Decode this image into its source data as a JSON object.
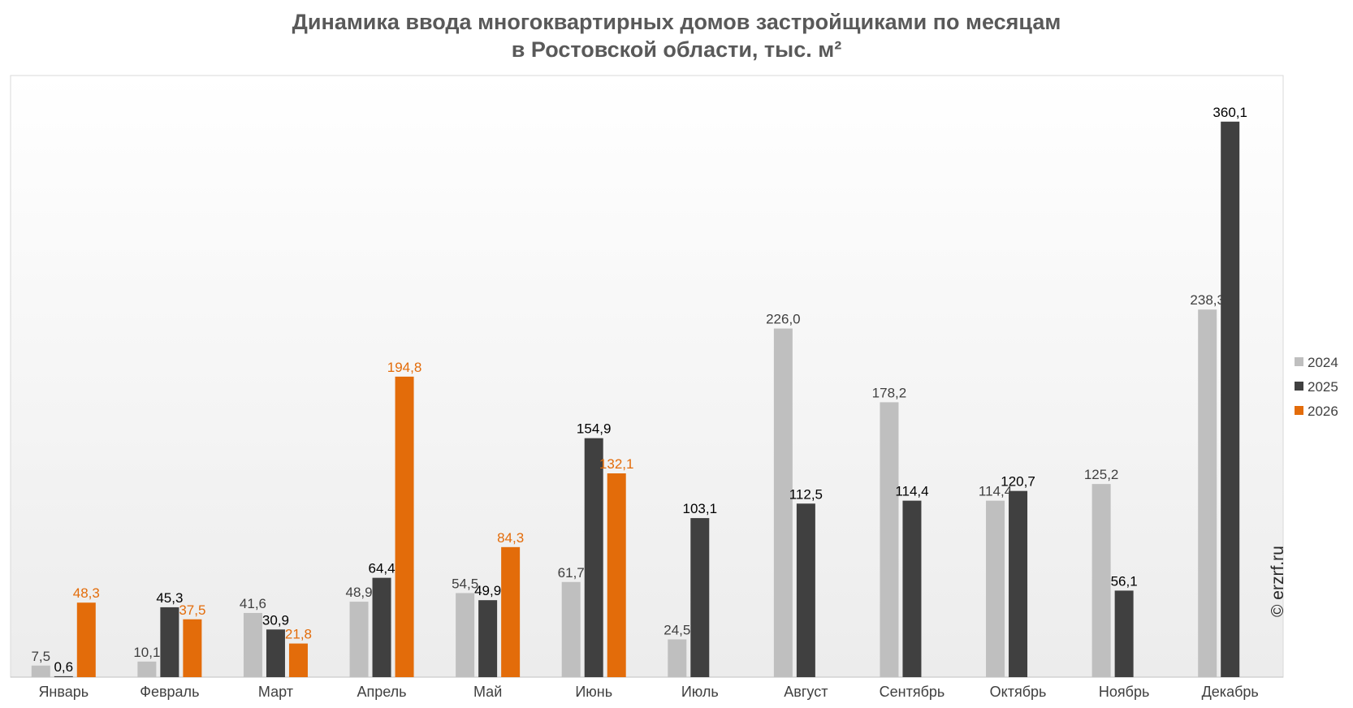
{
  "chart_data": {
    "type": "bar",
    "title_line1": "Динамика ввода многоквартирных домов застройщиками по месяцам",
    "title_line2": "в Ростовской области, тыс. м²",
    "categories": [
      "Январь",
      "Февраль",
      "Март",
      "Апрель",
      "Май",
      "Июнь",
      "Июль",
      "Август",
      "Сентябрь",
      "Октябрь",
      "Ноябрь",
      "Декабрь"
    ],
    "series": [
      {
        "name": "2024",
        "color": "#bfbfbf",
        "label_color": "#404040",
        "values": [
          7.5,
          10.1,
          41.6,
          48.9,
          54.5,
          61.7,
          24.5,
          226.0,
          178.2,
          114.4,
          125.2,
          238.3
        ],
        "labels": [
          "7,5",
          "10,1",
          "41,6",
          "48,9",
          "54,5",
          "61,7",
          "24,5",
          "226,0",
          "178,2",
          "114,4",
          "125,2",
          "238,3"
        ]
      },
      {
        "name": "2025",
        "color": "#404040",
        "label_color": "#000000",
        "values": [
          0.6,
          45.3,
          30.9,
          64.4,
          49.9,
          154.9,
          103.1,
          112.5,
          114.4,
          120.7,
          56.1,
          360.1
        ],
        "labels": [
          "0,6",
          "45,3",
          "30,9",
          "64,4",
          "49,9",
          "154,9",
          "103,1",
          "112,5",
          "114,4",
          "120,7",
          "56,1",
          "360,1"
        ]
      },
      {
        "name": "2026",
        "color": "#e36c0a",
        "label_color": "#e36c0a",
        "values": [
          48.3,
          37.5,
          21.8,
          194.8,
          84.3,
          132.1,
          null,
          null,
          null,
          null,
          null,
          null
        ],
        "labels": [
          "48,3",
          "37,5",
          "21,8",
          "194,8",
          "84,3",
          "132,1",
          "",
          "",
          "",
          "",
          "",
          ""
        ]
      }
    ],
    "ylim": [
      0,
      390
    ],
    "y_axis_visible": false,
    "grid": false,
    "legend_position": "right"
  },
  "watermark": "© erzrf.ru"
}
